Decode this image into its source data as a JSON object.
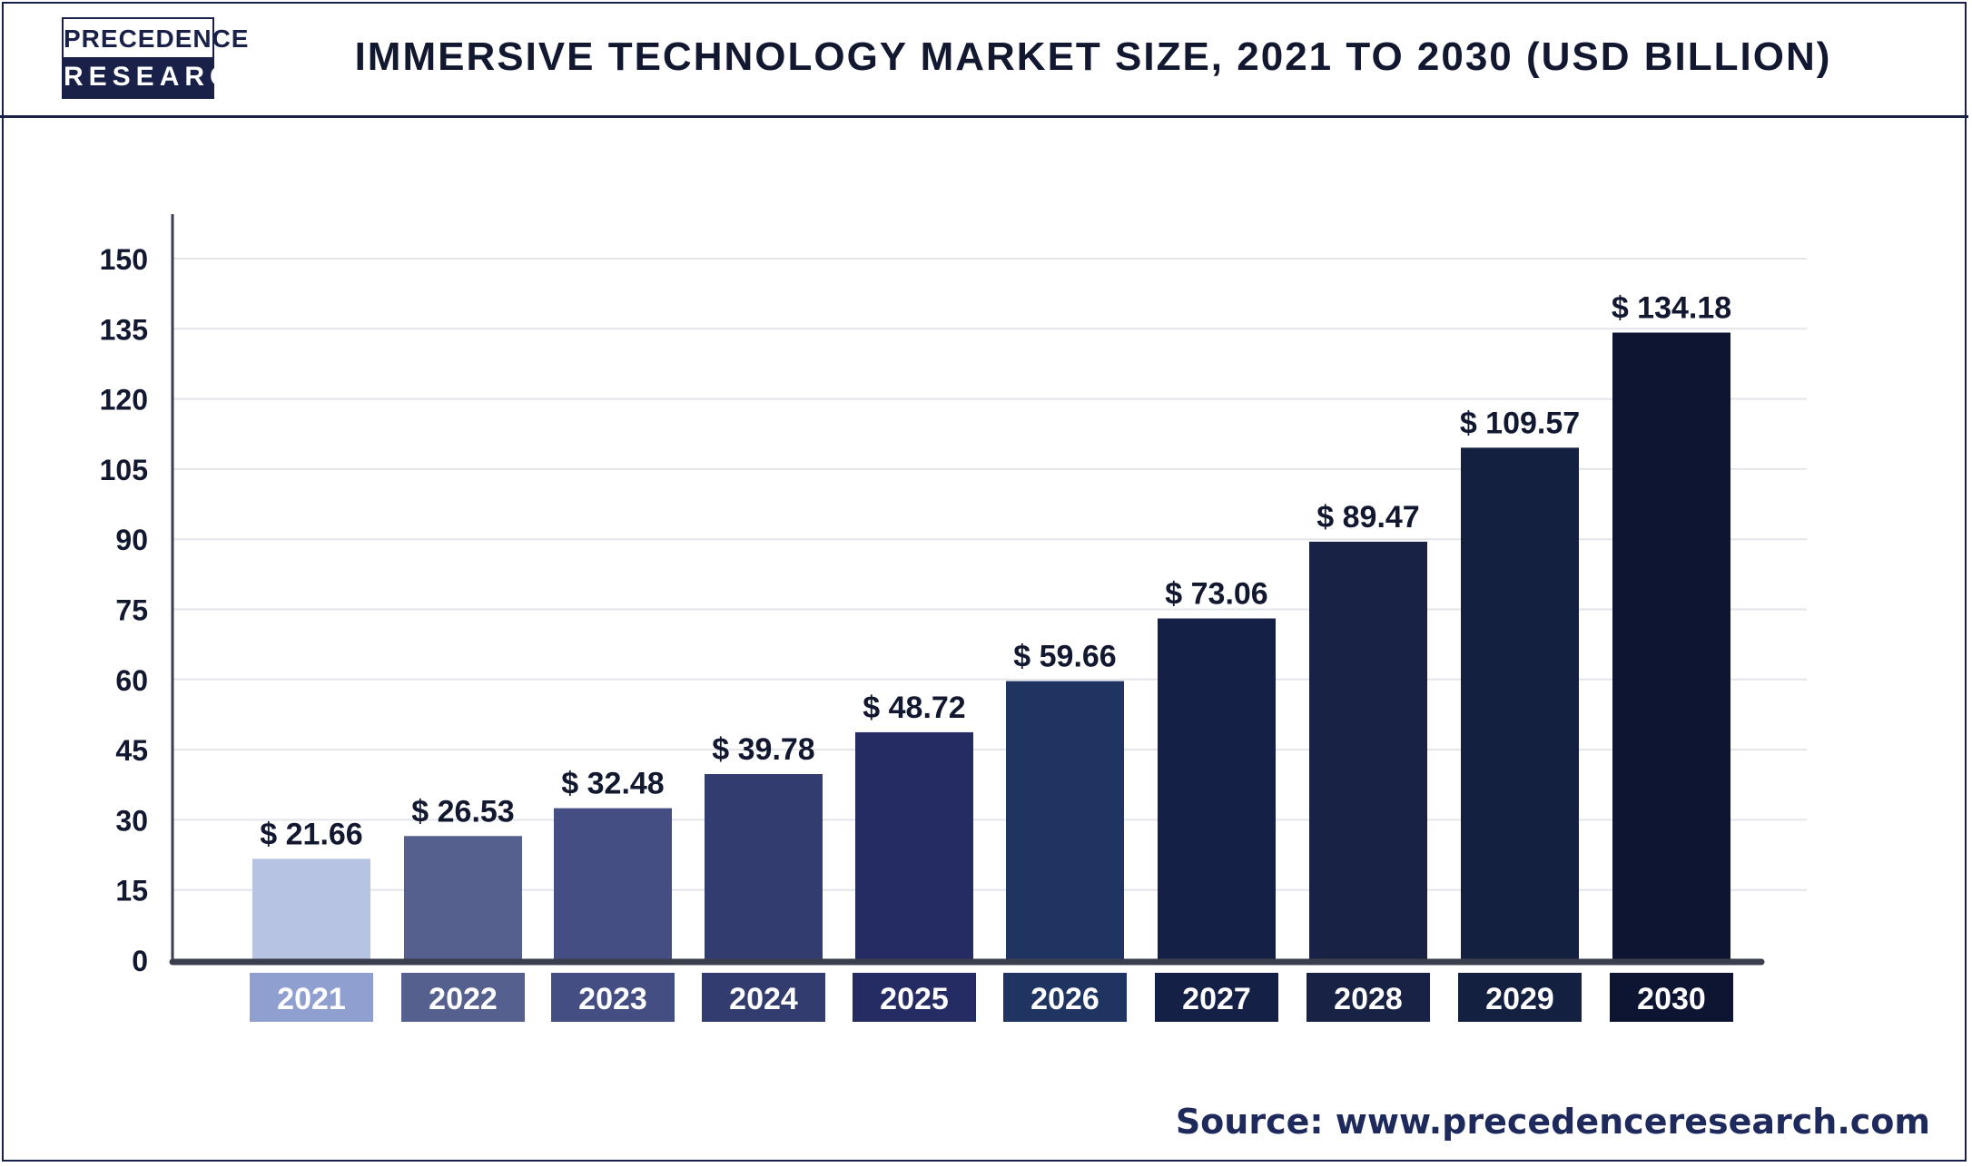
{
  "header": {
    "logo_line1": "PRECEDENCE",
    "logo_line2": "RESEARCH",
    "title": "IMMERSIVE TECHNOLOGY MARKET SIZE, 2021 TO 2030 (USD BILLION)"
  },
  "source": "Source: www.precedenceresearch.com",
  "chart_data": {
    "type": "bar",
    "title": "IMMERSIVE TECHNOLOGY MARKET SIZE, 2021 TO 2030 (USD BILLION)",
    "xlabel": "",
    "ylabel": "",
    "categories": [
      "2021",
      "2022",
      "2023",
      "2024",
      "2025",
      "2026",
      "2027",
      "2028",
      "2029",
      "2030"
    ],
    "values": [
      21.66,
      26.53,
      32.48,
      39.78,
      48.72,
      59.66,
      73.06,
      89.47,
      109.57,
      134.18
    ],
    "value_labels": [
      "$ 21.66",
      "$ 26.53",
      "$ 32.48",
      "$ 39.78",
      "$ 48.72",
      "$ 59.66",
      "$ 73.06",
      "$ 89.47",
      "$ 109.57",
      "$ 134.18"
    ],
    "ylim": [
      0,
      150
    ],
    "yticks": [
      0,
      15,
      30,
      45,
      60,
      75,
      90,
      105,
      120,
      135,
      150
    ],
    "grid": true,
    "legend": "none",
    "bar_colors": [
      "#b7c3e2",
      "#56608f",
      "#454e83",
      "#333c6e",
      "#252b63",
      "#1f3461",
      "#152046",
      "#172244",
      "#132040",
      "#0d1533"
    ],
    "label_box_colors": [
      "#8f9fd0",
      "#56608f",
      "#454e83",
      "#333c6e",
      "#252b63",
      "#1f3461",
      "#152046",
      "#172244",
      "#132040",
      "#0d1533"
    ],
    "text_color": "#111830",
    "axis_color": "#3b3f4d",
    "grid_color": "#e3e5ea"
  }
}
